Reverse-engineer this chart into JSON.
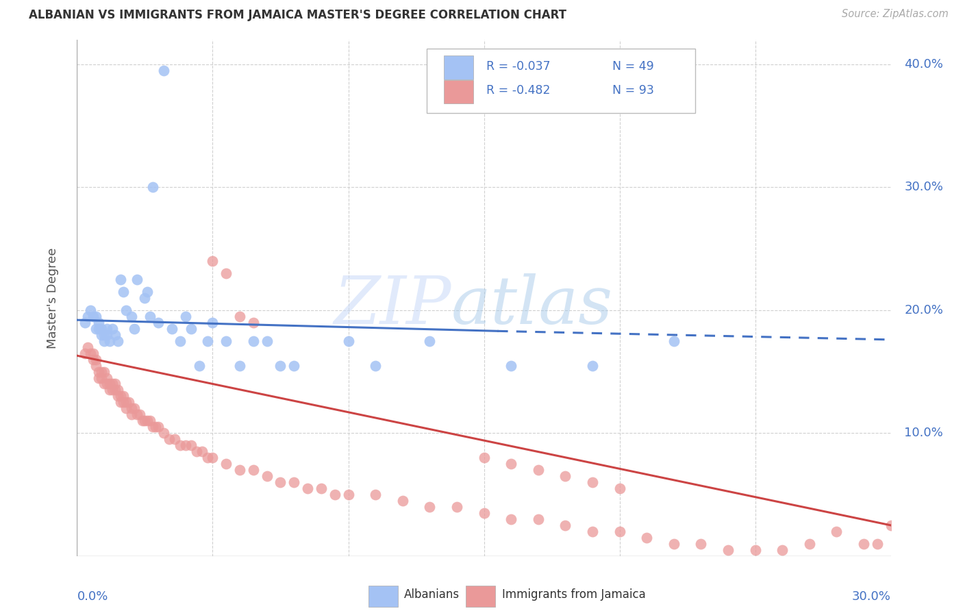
{
  "title": "ALBANIAN VS IMMIGRANTS FROM JAMAICA MASTER'S DEGREE CORRELATION CHART",
  "source": "Source: ZipAtlas.com",
  "ylabel": "Master's Degree",
  "xlim": [
    0.0,
    0.3
  ],
  "ylim": [
    0.0,
    0.42
  ],
  "blue_color": "#a4c2f4",
  "pink_color": "#ea9999",
  "line_blue": "#4472c4",
  "line_pink": "#cc4444",
  "label_color": "#4472c4",
  "grid_color": "#d0d0d0",
  "title_color": "#333333",
  "source_color": "#aaaaaa",
  "legend_text_rn_color": "#4472c4",
  "right_yticks": [
    0.1,
    0.2,
    0.3,
    0.4
  ],
  "right_yticklabels": [
    "10.0%",
    "20.0%",
    "30.0%",
    "40.0%"
  ],
  "hgrid": [
    0.1,
    0.2,
    0.3,
    0.4
  ],
  "vgrid": [
    0.05,
    0.1,
    0.15,
    0.2,
    0.25
  ],
  "alb_x": [
    0.003,
    0.004,
    0.005,
    0.006,
    0.007,
    0.007,
    0.008,
    0.008,
    0.009,
    0.009,
    0.01,
    0.01,
    0.011,
    0.011,
    0.012,
    0.013,
    0.014,
    0.015,
    0.016,
    0.017,
    0.018,
    0.02,
    0.021,
    0.022,
    0.025,
    0.026,
    0.027,
    0.03,
    0.032,
    0.035,
    0.038,
    0.04,
    0.042,
    0.045,
    0.048,
    0.05,
    0.055,
    0.06,
    0.065,
    0.07,
    0.075,
    0.08,
    0.1,
    0.11,
    0.13,
    0.16,
    0.19,
    0.22,
    0.028
  ],
  "alb_y": [
    0.19,
    0.195,
    0.2,
    0.195,
    0.195,
    0.185,
    0.19,
    0.185,
    0.185,
    0.18,
    0.18,
    0.175,
    0.185,
    0.18,
    0.175,
    0.185,
    0.18,
    0.175,
    0.225,
    0.215,
    0.2,
    0.195,
    0.185,
    0.225,
    0.21,
    0.215,
    0.195,
    0.19,
    0.395,
    0.185,
    0.175,
    0.195,
    0.185,
    0.155,
    0.175,
    0.19,
    0.175,
    0.155,
    0.175,
    0.175,
    0.155,
    0.155,
    0.175,
    0.155,
    0.175,
    0.155,
    0.155,
    0.175,
    0.3
  ],
  "jam_x": [
    0.003,
    0.004,
    0.005,
    0.006,
    0.006,
    0.007,
    0.007,
    0.008,
    0.008,
    0.009,
    0.009,
    0.01,
    0.01,
    0.011,
    0.011,
    0.012,
    0.012,
    0.013,
    0.013,
    0.014,
    0.014,
    0.015,
    0.015,
    0.016,
    0.016,
    0.017,
    0.017,
    0.018,
    0.018,
    0.019,
    0.02,
    0.02,
    0.021,
    0.022,
    0.023,
    0.024,
    0.025,
    0.026,
    0.027,
    0.028,
    0.029,
    0.03,
    0.032,
    0.034,
    0.036,
    0.038,
    0.04,
    0.042,
    0.044,
    0.046,
    0.048,
    0.05,
    0.055,
    0.06,
    0.065,
    0.07,
    0.075,
    0.08,
    0.085,
    0.09,
    0.095,
    0.1,
    0.11,
    0.12,
    0.13,
    0.14,
    0.15,
    0.16,
    0.17,
    0.18,
    0.19,
    0.2,
    0.21,
    0.22,
    0.23,
    0.24,
    0.25,
    0.26,
    0.27,
    0.28,
    0.29,
    0.295,
    0.3,
    0.05,
    0.055,
    0.06,
    0.065,
    0.15,
    0.16,
    0.17,
    0.18,
    0.19,
    0.2
  ],
  "jam_y": [
    0.165,
    0.17,
    0.165,
    0.165,
    0.16,
    0.16,
    0.155,
    0.15,
    0.145,
    0.15,
    0.145,
    0.15,
    0.14,
    0.145,
    0.14,
    0.14,
    0.135,
    0.14,
    0.135,
    0.14,
    0.135,
    0.135,
    0.13,
    0.13,
    0.125,
    0.13,
    0.125,
    0.125,
    0.12,
    0.125,
    0.12,
    0.115,
    0.12,
    0.115,
    0.115,
    0.11,
    0.11,
    0.11,
    0.11,
    0.105,
    0.105,
    0.105,
    0.1,
    0.095,
    0.095,
    0.09,
    0.09,
    0.09,
    0.085,
    0.085,
    0.08,
    0.08,
    0.075,
    0.07,
    0.07,
    0.065,
    0.06,
    0.06,
    0.055,
    0.055,
    0.05,
    0.05,
    0.05,
    0.045,
    0.04,
    0.04,
    0.035,
    0.03,
    0.03,
    0.025,
    0.02,
    0.02,
    0.015,
    0.01,
    0.01,
    0.005,
    0.005,
    0.005,
    0.01,
    0.02,
    0.01,
    0.01,
    0.025,
    0.24,
    0.23,
    0.195,
    0.19,
    0.08,
    0.075,
    0.07,
    0.065,
    0.06,
    0.055
  ],
  "alb_line_solid": [
    [
      0.0,
      0.192
    ],
    [
      0.155,
      0.183
    ]
  ],
  "alb_line_dash": [
    [
      0.155,
      0.183
    ],
    [
      0.3,
      0.176
    ]
  ],
  "jam_line": [
    [
      0.0,
      0.163
    ],
    [
      0.3,
      0.025
    ]
  ]
}
